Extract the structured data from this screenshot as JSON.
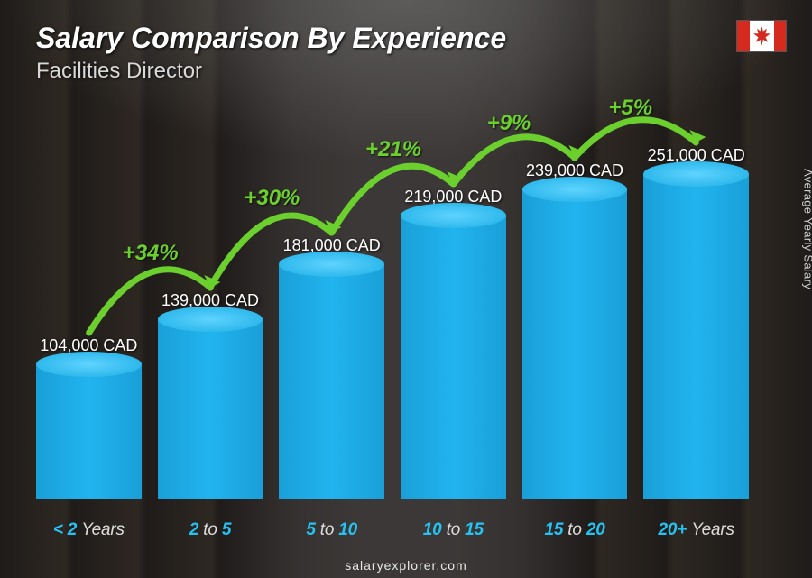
{
  "header": {
    "title": "Salary Comparison By Experience",
    "subtitle": "Facilities Director",
    "flag_country": "Canada"
  },
  "chart": {
    "type": "bar",
    "y_axis_label": "Average Yearly Salary",
    "max_value": 251000,
    "bar_color_base": "#1fb0e6",
    "bar_color_highlight": "#5fd3ff",
    "background_tint": "#2a2620",
    "label_color": "#25c3f4",
    "growth_color": "#6bcf2e",
    "value_text_color": "#ffffff",
    "bars": [
      {
        "category_html": "< 2 Years",
        "value": 104000,
        "value_label": "104,000 CAD"
      },
      {
        "category_html": "2 to 5",
        "value": 139000,
        "value_label": "139,000 CAD",
        "growth": "+34%"
      },
      {
        "category_html": "5 to 10",
        "value": 181000,
        "value_label": "181,000 CAD",
        "growth": "+30%"
      },
      {
        "category_html": "10 to 15",
        "value": 219000,
        "value_label": "219,000 CAD",
        "growth": "+21%"
      },
      {
        "category_html": "15 to 20",
        "value": 239000,
        "value_label": "239,000 CAD",
        "growth": "+9%"
      },
      {
        "category_html": "20+ Years",
        "value": 251000,
        "value_label": "251,000 CAD",
        "growth": "+5%"
      }
    ]
  },
  "footer": {
    "site": "salaryexplorer.com"
  }
}
